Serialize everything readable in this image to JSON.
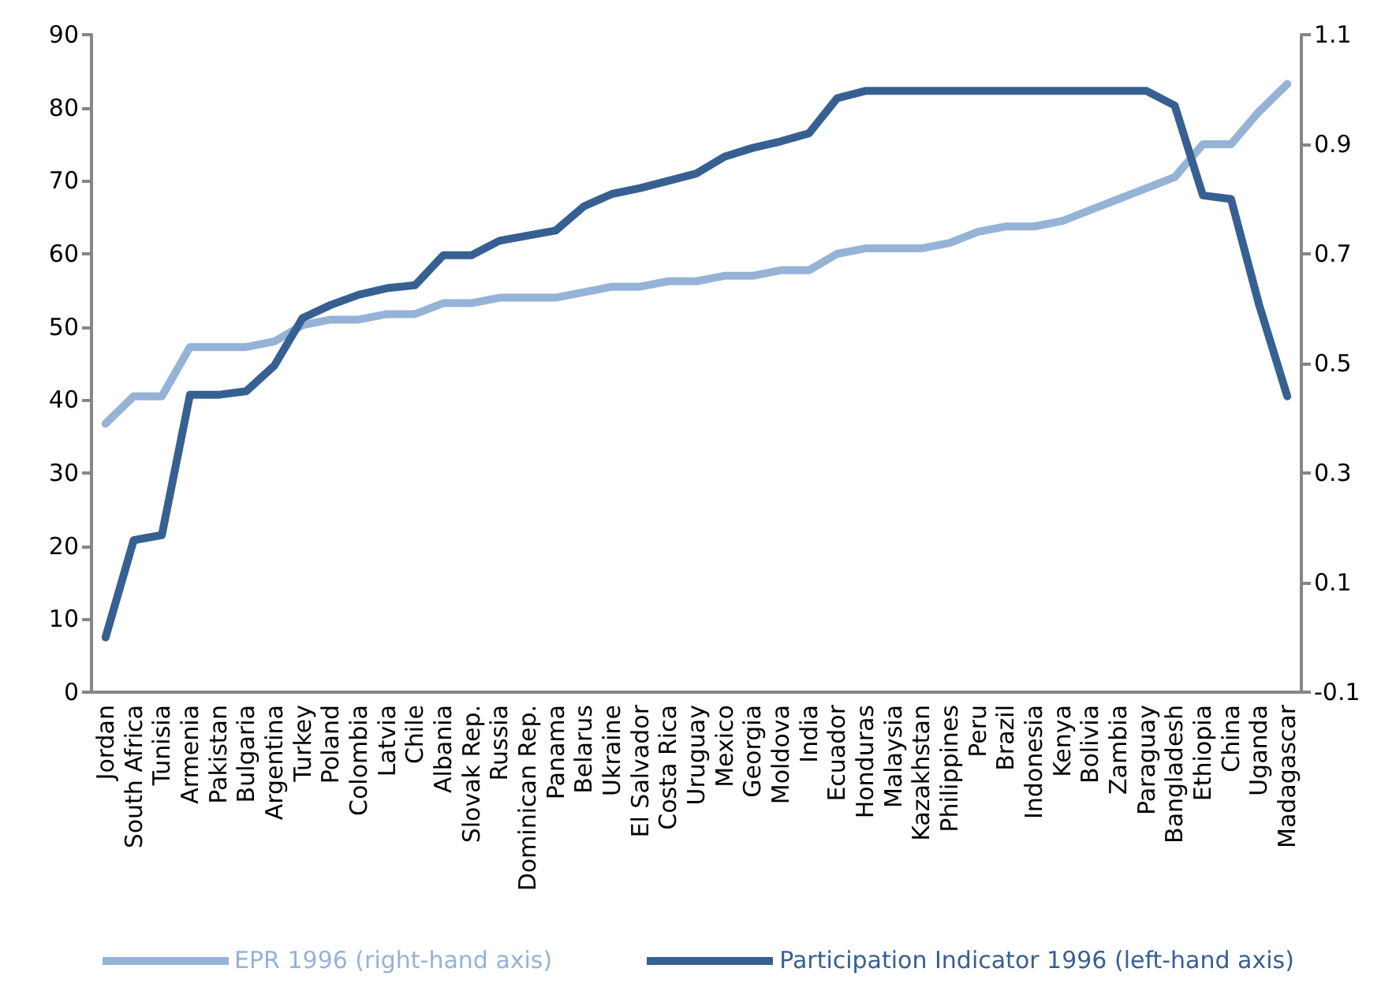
{
  "chart_data": {
    "type": "line",
    "categories": [
      "Jordan",
      "South Africa",
      "Tunisia",
      "Armenia",
      "Pakistan",
      "Bulgaria",
      "Argentina",
      "Turkey",
      "Poland",
      "Colombia",
      "Latvia",
      "Chile",
      "Albania",
      "Slovak Rep.",
      "Russia",
      "Dominican Rep.",
      "Panama",
      "Belarus",
      "Ukraine",
      "El Salvador",
      "Costa Rica",
      "Uruguay",
      "Mexico",
      "Georgia",
      "Moldova",
      "India",
      "Ecuador",
      "Honduras",
      "Malaysia",
      "Kazakhstan",
      "Philippines",
      "Peru",
      "Brazil",
      "Indonesia",
      "Kenya",
      "Bolivia",
      "Zambia",
      "Paraguay",
      "Bangladesh",
      "Ethiopia",
      "China",
      "Uganda",
      "Madagascar"
    ],
    "series": [
      {
        "name": "EPR 1996 (right-hand axis)",
        "color": "#95b3d7",
        "axis": "y2",
        "values": [
          0.39,
          0.44,
          0.44,
          0.53,
          0.53,
          0.53,
          0.54,
          0.57,
          0.58,
          0.58,
          0.59,
          0.59,
          0.61,
          0.61,
          0.62,
          0.62,
          0.62,
          0.63,
          0.64,
          0.64,
          0.65,
          0.65,
          0.66,
          0.66,
          0.67,
          0.67,
          0.7,
          0.71,
          0.71,
          0.71,
          0.72,
          0.74,
          0.75,
          0.75,
          0.76,
          0.78,
          0.8,
          0.82,
          0.84,
          0.9,
          0.9,
          0.96,
          1.01
        ]
      },
      {
        "name": "Participation Indicator 1996 (left-hand axis)",
        "color": "#376092",
        "values": [
          7.5,
          20.8,
          21.5,
          40.7,
          40.7,
          41.2,
          44.7,
          51.2,
          53,
          54.4,
          55.3,
          55.7,
          59.8,
          59.8,
          61.8,
          62.5,
          63.2,
          66.5,
          68.2,
          69,
          70,
          71,
          73.3,
          74.5,
          75.4,
          76.5,
          81.3,
          82.3,
          82.3,
          82.3,
          82.3,
          82.3,
          82.3,
          82.3,
          82.3,
          82.3,
          82.3,
          82.3,
          80.3,
          68,
          67.5,
          53,
          40.5
        ]
      }
    ],
    "ylim": [
      0,
      90
    ],
    "yticks": [
      0,
      10,
      20,
      30,
      40,
      50,
      60,
      70,
      80,
      90
    ],
    "y2lim": [
      -0.1,
      1.1
    ],
    "y2ticks": [
      -0.1,
      0.1,
      0.3,
      0.5,
      0.7,
      0.9,
      1.1
    ],
    "legend": "bottom",
    "marker": "none",
    "line_style": "solid",
    "grid": false
  }
}
